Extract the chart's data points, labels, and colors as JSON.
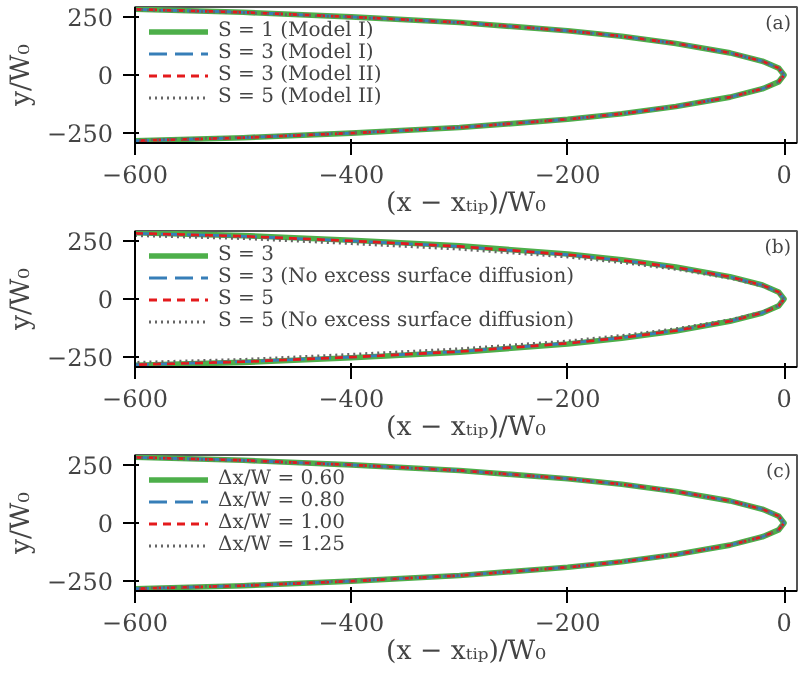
{
  "chart_data": [
    {
      "type": "line",
      "xlabel": "(x − xₜᵢₚ)/W₀",
      "ylabel": "y/W₀",
      "annotations": [
        "(a)"
      ],
      "legend": "top left",
      "xlim": [
        -600,
        12
      ],
      "ylim": [
        -295,
        295
      ],
      "xticks": [
        -600,
        -400,
        -200,
        0
      ],
      "yticks": [
        -250,
        0,
        250
      ],
      "x": [
        -600,
        -500,
        -400,
        -300,
        -200,
        -150,
        -100,
        -50,
        -20,
        -5,
        0,
        -5,
        -20,
        -50,
        -100,
        -150,
        -200,
        -300,
        -400,
        -500,
        -600
      ],
      "series": [
        {
          "name": "S = 1 (Model I)",
          "color": "#4daf4a",
          "line_style": "solid",
          "values": [
            285,
            272,
            252,
            228,
            192,
            168,
            137,
            96,
            60,
            30,
            0,
            -30,
            -60,
            -96,
            -137,
            -168,
            -192,
            -228,
            -252,
            -272,
            -285
          ]
        },
        {
          "name": "S = 3 (Model I)",
          "color": "#377eb8",
          "line_style": "dashed",
          "values": [
            285,
            272,
            252,
            228,
            192,
            168,
            137,
            96,
            60,
            30,
            0,
            -30,
            -60,
            -96,
            -137,
            -168,
            -192,
            -228,
            -252,
            -272,
            -285
          ]
        },
        {
          "name": "S = 3 (Model II)",
          "color": "#e41a1c",
          "line_style": "dashed",
          "values": [
            285,
            272,
            252,
            228,
            192,
            168,
            137,
            96,
            60,
            30,
            0,
            -30,
            -60,
            -96,
            -137,
            -168,
            -192,
            -228,
            -252,
            -272,
            -285
          ]
        },
        {
          "name": "S = 5 (Model II)",
          "color": "#666666",
          "line_style": "dotted",
          "values": [
            283,
            270,
            250,
            226,
            191,
            167,
            136,
            95,
            60,
            30,
            0,
            -30,
            -60,
            -95,
            -136,
            -167,
            -191,
            -226,
            -250,
            -270,
            -283
          ]
        }
      ]
    },
    {
      "type": "line",
      "xlabel": "(x − xₜᵢₚ)/W₀",
      "ylabel": "y/W₀",
      "annotations": [
        "(b)"
      ],
      "legend": "top left",
      "xlim": [
        -600,
        12
      ],
      "ylim": [
        -295,
        295
      ],
      "xticks": [
        -600,
        -400,
        -200,
        0
      ],
      "yticks": [
        -250,
        0,
        250
      ],
      "x": [
        -600,
        -500,
        -400,
        -300,
        -200,
        -150,
        -100,
        -50,
        -20,
        -5,
        0,
        -5,
        -20,
        -50,
        -100,
        -150,
        -200,
        -300,
        -400,
        -500,
        -600
      ],
      "series": [
        {
          "name": "S = 3",
          "color": "#4daf4a",
          "line_style": "solid",
          "values": [
            288,
            275,
            255,
            231,
            195,
            170,
            139,
            97,
            61,
            30,
            0,
            -30,
            -61,
            -97,
            -139,
            -170,
            -195,
            -231,
            -255,
            -275,
            -288
          ]
        },
        {
          "name": "S = 3 (No excess surface diffusion)",
          "color": "#377eb8",
          "line_style": "dashed",
          "values": [
            285,
            272,
            252,
            228,
            192,
            168,
            137,
            96,
            60,
            30,
            0,
            -30,
            -60,
            -96,
            -137,
            -168,
            -192,
            -228,
            -252,
            -272,
            -285
          ]
        },
        {
          "name": "S = 5",
          "color": "#e41a1c",
          "line_style": "dashed",
          "values": [
            285,
            272,
            252,
            228,
            192,
            168,
            137,
            96,
            60,
            30,
            0,
            -30,
            -60,
            -96,
            -137,
            -168,
            -192,
            -228,
            -252,
            -272,
            -285
          ]
        },
        {
          "name": "S = 5 (No excess surface diffusion)",
          "color": "#666666",
          "line_style": "dotted",
          "values": [
            275,
            262,
            240,
            216,
            182,
            158,
            129,
            90,
            56,
            28,
            0,
            -28,
            -56,
            -90,
            -129,
            -158,
            -182,
            -216,
            -240,
            -262,
            -275
          ]
        }
      ]
    },
    {
      "type": "line",
      "xlabel": "(x − xₜᵢₚ)/W₀",
      "ylabel": "y/W₀",
      "annotations": [
        "(c)"
      ],
      "legend": "top left",
      "xlim": [
        -600,
        12
      ],
      "ylim": [
        -295,
        295
      ],
      "xticks": [
        -600,
        -400,
        -200,
        0
      ],
      "yticks": [
        -250,
        0,
        250
      ],
      "x": [
        -600,
        -500,
        -400,
        -300,
        -200,
        -150,
        -100,
        -50,
        -20,
        -5,
        0,
        -5,
        -20,
        -50,
        -100,
        -150,
        -200,
        -300,
        -400,
        -500,
        -600
      ],
      "series": [
        {
          "name": "Δx/W = 0.60",
          "color": "#4daf4a",
          "line_style": "solid",
          "values": [
            285,
            272,
            252,
            228,
            192,
            168,
            137,
            96,
            60,
            30,
            0,
            -30,
            -60,
            -96,
            -137,
            -168,
            -192,
            -228,
            -252,
            -272,
            -285
          ]
        },
        {
          "name": "Δx/W = 0.80",
          "color": "#377eb8",
          "line_style": "dashed",
          "values": [
            285,
            272,
            252,
            228,
            192,
            168,
            137,
            96,
            60,
            30,
            0,
            -30,
            -60,
            -96,
            -137,
            -168,
            -192,
            -228,
            -252,
            -272,
            -285
          ]
        },
        {
          "name": "Δx/W = 1.00",
          "color": "#e41a1c",
          "line_style": "dashed",
          "values": [
            285,
            272,
            252,
            228,
            192,
            168,
            137,
            96,
            60,
            30,
            0,
            -30,
            -60,
            -96,
            -137,
            -168,
            -192,
            -228,
            -252,
            -272,
            -285
          ]
        },
        {
          "name": "Δx/W = 1.25",
          "color": "#666666",
          "line_style": "dotted",
          "values": [
            283,
            270,
            250,
            226,
            191,
            167,
            136,
            95,
            60,
            30,
            0,
            -30,
            -60,
            -95,
            -136,
            -167,
            -191,
            -226,
            -250,
            -270,
            -283
          ]
        }
      ]
    }
  ]
}
